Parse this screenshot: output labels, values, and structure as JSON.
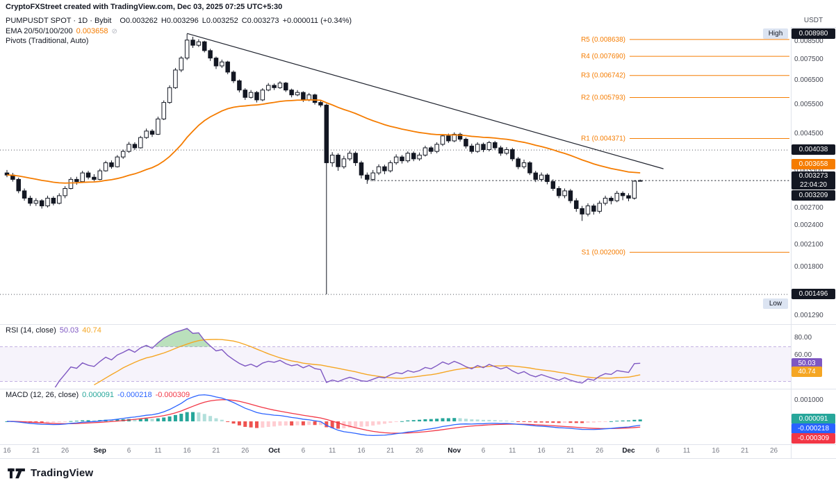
{
  "attribution": "CryptoFXStreet created with TradingView.com, Dec 03, 2025 07:25 UTC+5:30",
  "currency_label": "USDT",
  "header": {
    "symbol": "PUMPUSDT SPOT · 1D · Bybit",
    "o_label": "O",
    "o_value": "0.003262",
    "h_label": "H",
    "h_value": "0.003296",
    "l_label": "L",
    "l_value": "0.003252",
    "c_label": "C",
    "c_value": "0.003273",
    "change": "+0.000011 (+0.34%)",
    "ema_label": "EMA 20/50/100/200",
    "ema_value": "0.003658",
    "ema_icon": "⊘",
    "pivots_label": "Pivots (Traditional, Auto)"
  },
  "rsi_legend": {
    "title": "RSI (14, close)",
    "value": "50.03",
    "ma_value": "40.74"
  },
  "macd_legend": {
    "title": "MACD (12, 26, close)",
    "hist": "0.000091",
    "macd": "-0.000218",
    "signal": "-0.000309"
  },
  "price_axis": {
    "ticks": [
      {
        "t": "0.008500",
        "p": 0.0085
      },
      {
        "t": "0.007500",
        "p": 0.0075
      },
      {
        "t": "0.006500",
        "p": 0.0065
      },
      {
        "t": "0.005500",
        "p": 0.0055
      },
      {
        "t": "0.004500",
        "p": 0.0045
      },
      {
        "t": "0.003500",
        "p": 0.0035
      },
      {
        "t": "0.002700",
        "p": 0.0027
      },
      {
        "t": "0.002400",
        "p": 0.0024
      },
      {
        "t": "0.002100",
        "p": 0.0021
      },
      {
        "t": "0.001800",
        "p": 0.0018
      },
      {
        "t": "0.001290",
        "p": 0.00129
      }
    ],
    "badges": [
      {
        "name": "high-marker-badge",
        "text": "High",
        "style": "light",
        "price": 0.00898,
        "inset": true,
        "dy": 0
      },
      {
        "name": "high-price-badge",
        "text": "0.008980",
        "style": "dark",
        "price": 0.00898,
        "dy": 0
      },
      {
        "name": "level-badge-4038",
        "text": "0.004038",
        "style": "dark",
        "price": 0.004038,
        "dy": 0
      },
      {
        "name": "ema-value-badge",
        "text": "0.003658",
        "style": "orange",
        "price": 0.003658,
        "dy": 0
      },
      {
        "name": "last-price-badge",
        "text": "0.003273",
        "style": "dark",
        "price": 0.003273,
        "sub": "22:04:20",
        "dy": 0
      },
      {
        "name": "level-badge-3209",
        "text": "0.003209",
        "style": "dark",
        "price": 0.003209,
        "dy": 18
      },
      {
        "name": "low-price-badge",
        "text": "0.001496",
        "style": "dark",
        "price": 0.001496,
        "dy": 0
      },
      {
        "name": "low-marker-badge",
        "text": "Low",
        "style": "light",
        "price": 0.001496,
        "inset": true,
        "dy": 14
      }
    ]
  },
  "rsi_axis": {
    "ticks": [
      {
        "t": "80.00",
        "v": 80
      },
      {
        "t": "60.00",
        "v": 60
      }
    ],
    "badges": [
      {
        "t": "50.03",
        "v": 50.03,
        "bg": "#7e57c2"
      },
      {
        "t": "40.74",
        "v": 40.74,
        "bg": "#f5a623"
      }
    ]
  },
  "macd_axis": {
    "ticks": [
      {
        "t": "0.001000",
        "v": 0.001
      }
    ],
    "badges": [
      {
        "t": "0.000091",
        "v": 9.1e-05,
        "bg": "#26a69a"
      },
      {
        "t": "-0.000218",
        "bg": "#2962ff"
      },
      {
        "t": "-0.000309",
        "bg": "#f23645"
      }
    ]
  },
  "time_axis": [
    {
      "t": "16",
      "i": 0
    },
    {
      "t": "21",
      "i": 5
    },
    {
      "t": "26",
      "i": 10
    },
    {
      "t": "Sep",
      "i": 16,
      "b": 1
    },
    {
      "t": "6",
      "i": 21
    },
    {
      "t": "11",
      "i": 26
    },
    {
      "t": "16",
      "i": 31
    },
    {
      "t": "21",
      "i": 36
    },
    {
      "t": "26",
      "i": 41
    },
    {
      "t": "Oct",
      "i": 46,
      "b": 1
    },
    {
      "t": "6",
      "i": 51
    },
    {
      "t": "11",
      "i": 56
    },
    {
      "t": "16",
      "i": 61
    },
    {
      "t": "21",
      "i": 66
    },
    {
      "t": "26",
      "i": 71
    },
    {
      "t": "Nov",
      "i": 77,
      "b": 1
    },
    {
      "t": "6",
      "i": 82
    },
    {
      "t": "11",
      "i": 87
    },
    {
      "t": "16",
      "i": 92
    },
    {
      "t": "21",
      "i": 97
    },
    {
      "t": "26",
      "i": 102
    },
    {
      "t": "Dec",
      "i": 107,
      "b": 1
    },
    {
      "t": "6",
      "i": 112
    },
    {
      "t": "11",
      "i": 117
    },
    {
      "t": "16",
      "i": 122
    },
    {
      "t": "21",
      "i": 127
    },
    {
      "t": "26",
      "i": 132
    }
  ],
  "footer": {
    "logo_text": "TradingView"
  },
  "colors": {
    "up": "#ffffff",
    "down": "#131722",
    "outline": "#131722",
    "ema": "#f57c00",
    "pivot": "#f57c00",
    "trend": "#1e222d",
    "dotted": "#50535e",
    "rsi": "#7e57c2",
    "rsi_ma": "#f5a623",
    "rsi_band": "rgba(126,87,194,0.07)",
    "rsi_band_line": "rgba(126,87,194,0.45)",
    "rsi_over": "rgba(102,187,106,0.45)",
    "macd": "#2962ff",
    "signal": "#f23645",
    "hist_grow_above": "#26a69a",
    "hist_fall_above": "#b2dfdb",
    "hist_fall_below": "#ef5350",
    "hist_grow_below": "#ffcdd2"
  },
  "chart_data": [
    {
      "type": "candlestick",
      "title": "PUMPUSDT SPOT · 1D · Bybit",
      "timeframe": "1D",
      "y_scale": "log",
      "price_unit": 1e-06,
      "x_start_label": "Aug 16",
      "x_end_label": "Dec 3",
      "last_ohlc": {
        "open": 0.003262,
        "high": 0.003296,
        "low": 0.003252,
        "close": 0.003273,
        "change": "+0.000011 (+0.34%)"
      },
      "candles": [
        [
          3450,
          3520,
          3350,
          3400
        ],
        [
          3400,
          3450,
          3250,
          3300
        ],
        [
          3300,
          3340,
          3000,
          3050
        ],
        [
          3050,
          3100,
          2850,
          2900
        ],
        [
          2900,
          2950,
          2750,
          2800
        ],
        [
          2800,
          2900,
          2750,
          2850
        ],
        [
          2850,
          2880,
          2700,
          2750
        ],
        [
          2750,
          2950,
          2720,
          2900
        ],
        [
          2900,
          2940,
          2760,
          2800
        ],
        [
          2800,
          3000,
          2780,
          2950
        ],
        [
          2950,
          3150,
          2900,
          3100
        ],
        [
          3100,
          3350,
          3080,
          3300
        ],
        [
          3300,
          3360,
          3180,
          3250
        ],
        [
          3250,
          3500,
          3220,
          3450
        ],
        [
          3450,
          3500,
          3300,
          3350
        ],
        [
          3350,
          3420,
          3260,
          3300
        ],
        [
          3300,
          3550,
          3280,
          3500
        ],
        [
          3500,
          3750,
          3480,
          3700
        ],
        [
          3700,
          3760,
          3550,
          3600
        ],
        [
          3600,
          3900,
          3580,
          3850
        ],
        [
          3850,
          4050,
          3800,
          4000
        ],
        [
          4000,
          4270,
          3960,
          4200
        ],
        [
          4200,
          4260,
          4040,
          4100
        ],
        [
          4100,
          4450,
          4080,
          4400
        ],
        [
          4400,
          4680,
          4360,
          4600
        ],
        [
          4600,
          4660,
          4420,
          4500
        ],
        [
          4500,
          5080,
          4480,
          5000
        ],
        [
          5000,
          5680,
          4960,
          5600
        ],
        [
          5600,
          6300,
          5550,
          6200
        ],
        [
          6200,
          7100,
          6150,
          7000
        ],
        [
          7000,
          7700,
          6900,
          7600
        ],
        [
          7600,
          8980,
          7500,
          8600
        ],
        [
          8600,
          8800,
          8150,
          8300
        ],
        [
          8300,
          8650,
          8200,
          8500
        ],
        [
          8500,
          8560,
          7900,
          8000
        ],
        [
          8000,
          8100,
          7450,
          7600
        ],
        [
          7600,
          7680,
          7050,
          7200
        ],
        [
          7200,
          7520,
          7100,
          7400
        ],
        [
          7400,
          7460,
          6800,
          6900
        ],
        [
          6900,
          6980,
          6400,
          6500
        ],
        [
          6500,
          6560,
          6000,
          6100
        ],
        [
          6100,
          6180,
          5700,
          5800
        ],
        [
          5800,
          6100,
          5750,
          6000
        ],
        [
          6000,
          6060,
          5600,
          5700
        ],
        [
          5700,
          6180,
          5650,
          6100
        ],
        [
          6100,
          6400,
          6050,
          6300
        ],
        [
          6300,
          6380,
          6100,
          6200
        ],
        [
          6200,
          6480,
          6150,
          6400
        ],
        [
          6400,
          6450,
          6020,
          6100
        ],
        [
          6100,
          6160,
          5800,
          5900
        ],
        [
          5900,
          6100,
          5850,
          6000
        ],
        [
          6000,
          6050,
          5620,
          5700
        ],
        [
          5700,
          5980,
          5650,
          5900
        ],
        [
          5900,
          5950,
          5520,
          5600
        ],
        [
          5600,
          5680,
          5420,
          5500
        ],
        [
          5500,
          5550,
          1496,
          3700
        ],
        [
          3700,
          3980,
          3600,
          3900
        ],
        [
          3900,
          3950,
          3500,
          3600
        ],
        [
          3600,
          3880,
          3550,
          3800
        ],
        [
          3800,
          4020,
          3750,
          3950
        ],
        [
          3950,
          4000,
          3620,
          3700
        ],
        [
          3700,
          3750,
          3320,
          3400
        ],
        [
          3400,
          3460,
          3200,
          3300
        ],
        [
          3300,
          3520,
          3260,
          3450
        ],
        [
          3450,
          3660,
          3400,
          3600
        ],
        [
          3600,
          3650,
          3420,
          3500
        ],
        [
          3500,
          3760,
          3460,
          3700
        ],
        [
          3700,
          3920,
          3650,
          3850
        ],
        [
          3850,
          3900,
          3680,
          3750
        ],
        [
          3750,
          4000,
          3700,
          3950
        ],
        [
          3950,
          4000,
          3740,
          3800
        ],
        [
          3800,
          3970,
          3750,
          3900
        ],
        [
          3900,
          4160,
          3860,
          4100
        ],
        [
          4100,
          4150,
          3930,
          4000
        ],
        [
          4000,
          4260,
          3950,
          4200
        ],
        [
          4200,
          4500,
          4150,
          4450
        ],
        [
          4450,
          4520,
          4240,
          4300
        ],
        [
          4300,
          4560,
          4260,
          4500
        ],
        [
          4500,
          4550,
          4280,
          4350
        ],
        [
          4350,
          4400,
          4080,
          4150
        ],
        [
          4150,
          4220,
          3940,
          4000
        ],
        [
          4000,
          4260,
          3960,
          4200
        ],
        [
          4200,
          4250,
          3980,
          4050
        ],
        [
          4050,
          4300,
          4000,
          4250
        ],
        [
          4250,
          4300,
          4040,
          4100
        ],
        [
          4100,
          4160,
          3880,
          3950
        ],
        [
          3950,
          4120,
          3900,
          4050
        ],
        [
          4050,
          4100,
          3740,
          3800
        ],
        [
          3800,
          3850,
          3540,
          3600
        ],
        [
          3600,
          3780,
          3550,
          3700
        ],
        [
          3700,
          3740,
          3400,
          3450
        ],
        [
          3450,
          3500,
          3240,
          3300
        ],
        [
          3300,
          3460,
          3250,
          3400
        ],
        [
          3400,
          3440,
          3190,
          3250
        ],
        [
          3250,
          3300,
          3050,
          3100
        ],
        [
          3100,
          3150,
          2900,
          2950
        ],
        [
          2950,
          3100,
          2900,
          3050
        ],
        [
          3050,
          3090,
          2800,
          2850
        ],
        [
          2850,
          2900,
          2640,
          2700
        ],
        [
          2700,
          2750,
          2480,
          2600
        ],
        [
          2600,
          2800,
          2560,
          2750
        ],
        [
          2750,
          2790,
          2590,
          2650
        ],
        [
          2650,
          2850,
          2610,
          2800
        ],
        [
          2800,
          2950,
          2760,
          2900
        ],
        [
          2900,
          2940,
          2780,
          2850
        ],
        [
          2850,
          3050,
          2820,
          3000
        ],
        [
          3000,
          3040,
          2860,
          2950
        ],
        [
          2950,
          3000,
          2840,
          2900
        ],
        [
          2900,
          3280,
          2870,
          3260
        ],
        [
          3262,
          3296,
          3252,
          3273
        ]
      ],
      "overlays": {
        "ema_label": "EMA 20/50/100/200",
        "ema_current": 0.003658,
        "ema_period_drawn": 40,
        "high": 0.00898,
        "low": 0.001496,
        "levels_dotted": [
          0.004038,
          0.001496
        ],
        "last_price": 0.003273,
        "last_price_line_from_index": 62,
        "countdown": "22:04:20",
        "trendline": {
          "from_index": 31,
          "from_price": 0.009,
          "to_index": 113,
          "to_price": 0.00355
        },
        "pivot_levels": [
          {
            "text": "R5 (0.008638)",
            "value": 0.008638
          },
          {
            "text": "R4 (0.007690)",
            "value": 0.00769
          },
          {
            "text": "R3 (0.006742)",
            "value": 0.006742
          },
          {
            "text": "R2 (0.005793)",
            "value": 0.005793
          },
          {
            "text": "R1 (0.004371)",
            "value": 0.004371
          },
          {
            "text": "S1 (0.002000)",
            "value": 0.002
          }
        ]
      }
    },
    {
      "type": "line",
      "name": "RSI (14, close)",
      "period": 14,
      "ma_period": 14,
      "current": 50.03,
      "ma_current": 40.74,
      "band": [
        30,
        70
      ],
      "y_ticks": [
        80,
        60
      ],
      "derived": "RSI(14) of candle closes; MA = SMA(14) of RSI"
    },
    {
      "type": "bar",
      "name": "MACD (12, 26, close)",
      "fast": 12,
      "slow": 26,
      "signal_period": 9,
      "current": {
        "histogram": 9.1e-05,
        "macd": -0.000218,
        "signal": -0.000309
      },
      "y_ticks": [
        0.001
      ],
      "derived": "MACD = EMA12 - EMA26 of closes; signal = EMA9 of MACD; histogram = MACD - signal"
    }
  ]
}
